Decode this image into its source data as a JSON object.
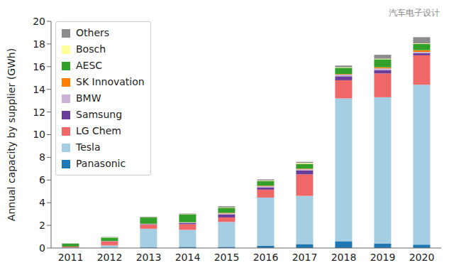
{
  "chart_data": {
    "type": "bar",
    "stacked": true,
    "grid": false,
    "legend": "upper left",
    "y_label": "Annual capacity by supplier (GWh)",
    "categories": [
      "2011",
      "2012",
      "2013",
      "2014",
      "2015",
      "2016",
      "2017",
      "2018",
      "2019",
      "2020"
    ],
    "ylim": [
      0,
      20
    ],
    "yticks": [
      0,
      2,
      4,
      6,
      8,
      10,
      12,
      14,
      16,
      18,
      20
    ],
    "annotations": [
      "汽车电子设计"
    ],
    "series": [
      {
        "name": "Panasonic",
        "color": "#1f78b4",
        "values": [
          0,
          0.03,
          0.05,
          0.1,
          0.1,
          0.2,
          0.35,
          0.6,
          0.4,
          0.3
        ]
      },
      {
        "name": "Tesla",
        "color": "#a6cee3",
        "values": [
          0.05,
          0.2,
          1.65,
          1.5,
          2.2,
          4.25,
          4.25,
          12.6,
          12.9,
          14.1
        ]
      },
      {
        "name": "LG Chem",
        "color": "#f06767",
        "values": [
          0.08,
          0.35,
          0.35,
          0.5,
          0.4,
          0.7,
          1.9,
          1.6,
          2.1,
          2.6
        ]
      },
      {
        "name": "Samsung",
        "color": "#6a3d9a",
        "values": [
          0,
          0.02,
          0.05,
          0.1,
          0.25,
          0.2,
          0.35,
          0.35,
          0.3,
          0.2
        ]
      },
      {
        "name": "BMW",
        "color": "#cab2d6",
        "values": [
          0,
          0.02,
          0.02,
          0.05,
          0.1,
          0.1,
          0.1,
          0.15,
          0.15,
          0.1
        ]
      },
      {
        "name": "SK Innovation",
        "color": "#ff7f00",
        "values": [
          0,
          0,
          0.02,
          0.02,
          0.05,
          0.05,
          0.05,
          0.05,
          0.1,
          0.15
        ]
      },
      {
        "name": "AESC",
        "color": "#33a02c",
        "values": [
          0.25,
          0.3,
          0.55,
          0.7,
          0.45,
          0.4,
          0.4,
          0.55,
          0.7,
          0.55
        ]
      },
      {
        "name": "Bosch",
        "color": "#ffff99",
        "values": [
          0,
          0.02,
          0.02,
          0.02,
          0.03,
          0.05,
          0.1,
          0.05,
          0.05,
          0.05
        ]
      },
      {
        "name": "Others",
        "color": "#8c8c8c",
        "values": [
          0.02,
          0.03,
          0.05,
          0.05,
          0.1,
          0.1,
          0.1,
          0.15,
          0.35,
          0.55
        ]
      }
    ]
  }
}
